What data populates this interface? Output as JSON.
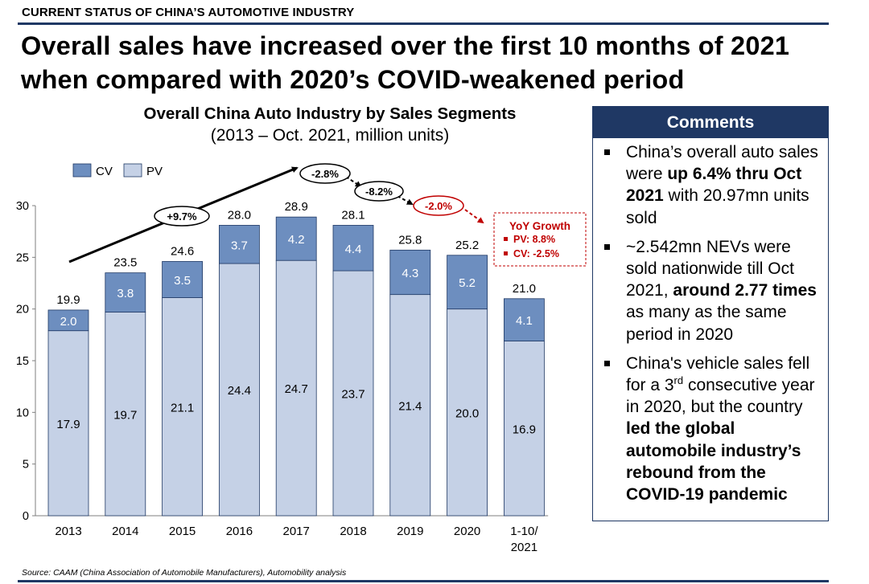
{
  "header": {
    "section_label": "CURRENT STATUS OF CHINA’S AUTOMOTIVE INDUSTRY",
    "headline_line1": "Overall sales have increased over the first 10 months of 2021",
    "headline_line2": "when compared with 2020’s COVID-weakened period"
  },
  "chart_data": {
    "type": "bar",
    "stacked": true,
    "title": "Overall China Auto Industry by Sales Segments",
    "subtitle": "(2013 – Oct. 2021, million units)",
    "categories": [
      "2013",
      "2014",
      "2015",
      "2016",
      "2017",
      "2018",
      "2019",
      "2020",
      "1-10/ 2021"
    ],
    "series": [
      {
        "name": "PV",
        "color": "#c5d1e6",
        "values": [
          17.9,
          19.7,
          21.1,
          24.4,
          24.7,
          23.7,
          21.4,
          20.0,
          16.9
        ]
      },
      {
        "name": "CV",
        "color": "#6d8ebf",
        "values": [
          2.0,
          3.8,
          3.5,
          3.7,
          4.2,
          4.4,
          4.3,
          5.2,
          4.1
        ]
      }
    ],
    "totals": [
      "19.9",
      "23.5",
      "24.6",
      "28.0",
      "28.9",
      "28.1",
      "25.8",
      "25.2",
      "21.0"
    ],
    "pv_labels": [
      "17.9",
      "19.7",
      "21.1",
      "24.4",
      "24.7",
      "23.7",
      "21.4",
      "20.0",
      "16.9"
    ],
    "cv_labels": [
      "2.0",
      "3.8",
      "3.5",
      "3.7",
      "4.2",
      "4.4",
      "4.3",
      "5.2",
      "4.1"
    ],
    "ylim": [
      0,
      30
    ],
    "yticks": [
      0,
      5,
      10,
      15,
      20,
      25,
      30
    ],
    "legend": {
      "position": "top-left",
      "entries": [
        "CV",
        "PV"
      ]
    },
    "grid": false,
    "growth_annotations": [
      {
        "label": "+9.7%",
        "color": "#000000"
      },
      {
        "label": "-2.8%",
        "color": "#000000"
      },
      {
        "label": "-8.2%",
        "color": "#000000"
      },
      {
        "label": "-2.0%",
        "color": "#c00000"
      }
    ],
    "yoy_box": {
      "title": "YoY Growth",
      "pv": "PV: 8.8%",
      "cv": "CV: -2.5%",
      "color": "#c00000"
    }
  },
  "comments": {
    "title": "Comments",
    "items": [
      [
        {
          "t": "China’s overall auto sales were "
        },
        {
          "t": "up 6.4% thru Oct 2021",
          "b": true
        },
        {
          "t": " with 20.97mn units sold"
        }
      ],
      [
        {
          "t": "~2.542mn NEVs were sold nationwide till Oct 2021, "
        },
        {
          "t": "around 2.77 times",
          "b": true
        },
        {
          "t": " as many as the same period in 2020"
        }
      ],
      [
        {
          "t": "China's vehicle sales fell for a 3"
        },
        {
          "t": "rd",
          "sup": true
        },
        {
          "t": " consecutive year in 2020, but the country "
        },
        {
          "t": "led the global automobile industry’s rebound from the COVID-19 pandemic",
          "b": true
        }
      ]
    ]
  },
  "footer": {
    "source": "Source: CAAM (China Association of Automobile Manufacturers), Automobility analysis"
  },
  "colors": {
    "navy": "#1f3864",
    "pv": "#c5d1e6",
    "cv": "#6d8ebf",
    "negative": "#c00000"
  }
}
